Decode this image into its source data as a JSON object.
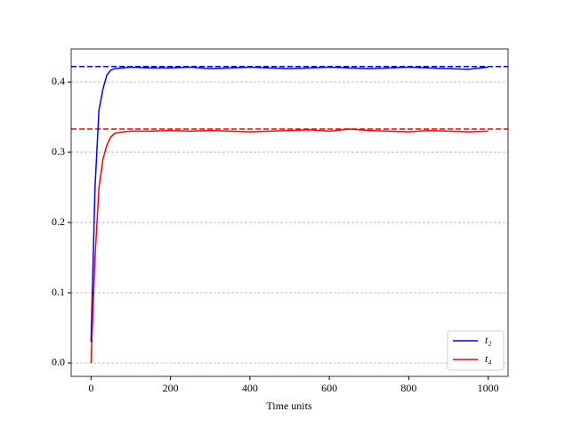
{
  "chart_data": {
    "type": "line",
    "xlabel": "Time units",
    "x": [
      0,
      10,
      20,
      30,
      40,
      50,
      60,
      80,
      100,
      150,
      200,
      250,
      300,
      350,
      400,
      450,
      500,
      550,
      600,
      650,
      700,
      750,
      800,
      850,
      900,
      950,
      1000
    ],
    "series": [
      {
        "name": "t₂",
        "color": "#0000ff",
        "values": [
          0.03,
          0.25,
          0.36,
          0.39,
          0.41,
          0.417,
          0.419,
          0.42,
          0.421,
          0.42,
          0.42,
          0.421,
          0.419,
          0.42,
          0.421,
          0.42,
          0.419,
          0.42,
          0.421,
          0.42,
          0.419,
          0.42,
          0.421,
          0.42,
          0.419,
          0.418,
          0.421
        ]
      },
      {
        "name": "t₄",
        "color": "#ff0000",
        "values": [
          0.0,
          0.15,
          0.25,
          0.29,
          0.31,
          0.322,
          0.327,
          0.329,
          0.33,
          0.33,
          0.331,
          0.33,
          0.331,
          0.33,
          0.329,
          0.33,
          0.331,
          0.332,
          0.33,
          0.333,
          0.331,
          0.33,
          0.329,
          0.331,
          0.33,
          0.329,
          0.33
        ]
      }
    ],
    "reference_lines": [
      {
        "value": 0.422,
        "color": "#0000ff"
      },
      {
        "value": 0.333,
        "color": "#ff0000"
      }
    ],
    "xlim": [
      -50,
      1050
    ],
    "ylim": [
      -0.019,
      0.447
    ],
    "xticks": [
      0,
      200,
      400,
      600,
      800,
      1000
    ],
    "yticks": [
      {
        "value": 0,
        "label": "0.0"
      },
      0.1,
      0.2,
      0.3,
      0.4
    ],
    "grid": true,
    "legend": "lower right"
  }
}
